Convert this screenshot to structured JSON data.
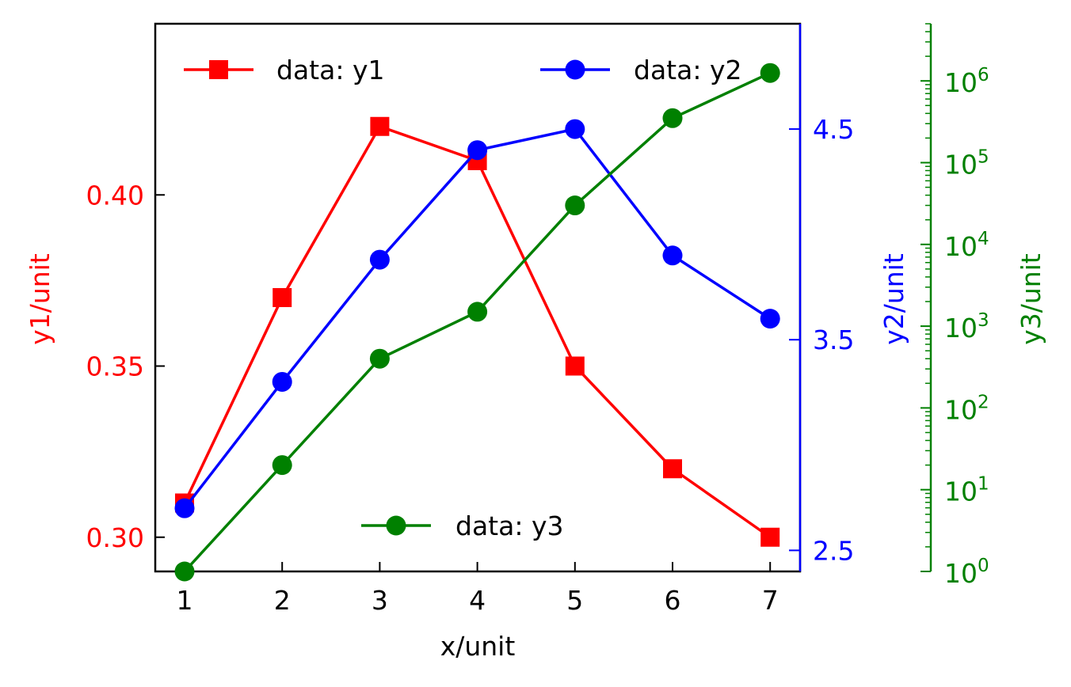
{
  "chart_data": {
    "type": "line",
    "x": [
      1,
      2,
      3,
      4,
      5,
      6,
      7
    ],
    "xlabel": "x/unit",
    "x_ticks": [
      "1",
      "2",
      "3",
      "4",
      "5",
      "6",
      "7"
    ],
    "series": [
      {
        "name": "data: y1",
        "axis": "left",
        "color": "#ff0000",
        "marker": "square",
        "values": [
          0.31,
          0.37,
          0.42,
          0.41,
          0.35,
          0.32,
          0.3
        ]
      },
      {
        "name": "data: y2",
        "axis": "right",
        "color": "#0000ff",
        "marker": "circle",
        "values": [
          2.7,
          3.3,
          3.88,
          4.4,
          4.5,
          3.9,
          3.6
        ]
      },
      {
        "name": "data: y3",
        "axis": "right-log",
        "color": "#008000",
        "marker": "circle",
        "values": [
          1,
          20,
          400,
          1500,
          30000,
          350000,
          1250000
        ]
      }
    ],
    "axes": {
      "left": {
        "label": "y1/unit",
        "color": "#ff0000",
        "ylim": [
          0.29,
          0.45
        ],
        "ticks": [
          "0.30",
          "0.35",
          "0.40"
        ],
        "tick_values": [
          0.3,
          0.35,
          0.4
        ]
      },
      "right": {
        "label": "y2/unit",
        "color": "#0000ff",
        "ylim": [
          2.4,
          5.0
        ],
        "ticks": [
          "2.5",
          "3.5",
          "4.5"
        ],
        "tick_values": [
          2.5,
          3.5,
          4.5
        ]
      },
      "right_log": {
        "label": "y3/unit",
        "color": "#008000",
        "scale": "log",
        "ylim": [
          1,
          5000000
        ],
        "ticks": [
          "0",
          "1",
          "2",
          "3",
          "4",
          "5",
          "6"
        ],
        "tick_base": "10",
        "tick_values": [
          1,
          10,
          100,
          1000,
          10000,
          100000,
          1000000
        ]
      }
    },
    "legend": [
      {
        "label": "data: y1",
        "placement": "top-left"
      },
      {
        "label": "data: y2",
        "placement": "top-right"
      },
      {
        "label": "data: y3",
        "placement": "bottom-center"
      }
    ],
    "grid": false
  }
}
